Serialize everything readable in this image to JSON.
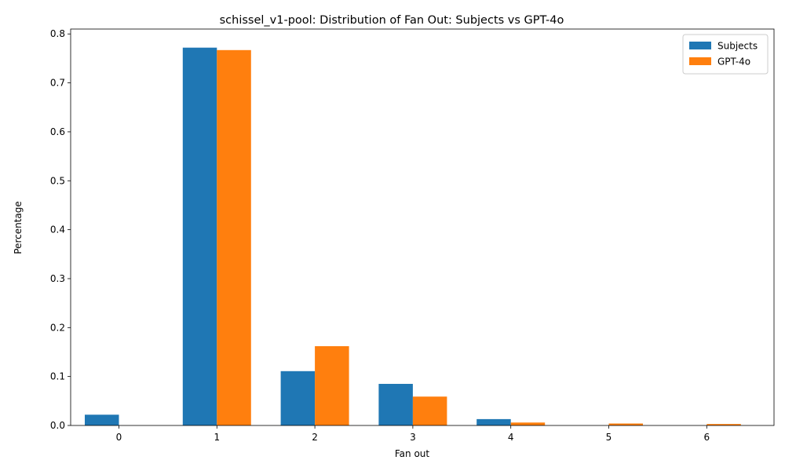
{
  "chart_data": {
    "type": "bar",
    "title": "schissel_v1-pool: Distribution of Fan Out: Subjects vs GPT-4o",
    "xlabel": "Fan out",
    "ylabel": "Percentage",
    "categories": [
      "0",
      "1",
      "2",
      "3",
      "4",
      "5",
      "6"
    ],
    "series": [
      {
        "name": "Subjects",
        "color": "#1f77b4",
        "values": [
          0.022,
          0.772,
          0.111,
          0.085,
          0.013,
          0.0,
          0.0
        ]
      },
      {
        "name": "GPT-4o",
        "color": "#ff7f0e",
        "values": [
          0.0,
          0.767,
          0.162,
          0.059,
          0.006,
          0.004,
          0.003
        ]
      }
    ],
    "ylim": [
      0,
      0.81
    ],
    "yticks": [
      0.0,
      0.1,
      0.2,
      0.3,
      0.4,
      0.5,
      0.6,
      0.7,
      0.8
    ],
    "ytick_labels": [
      "0.0",
      "0.1",
      "0.2",
      "0.3",
      "0.4",
      "0.5",
      "0.6",
      "0.7",
      "0.8"
    ],
    "grid": false,
    "legend_position": "top-right"
  }
}
